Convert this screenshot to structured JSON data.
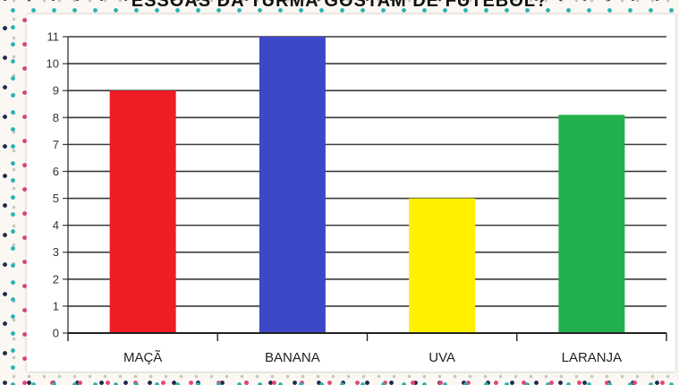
{
  "header": {
    "title": "ESSOAS DA TURMA GOSTAM DE FUTEBOL?"
  },
  "chart_data": {
    "type": "bar",
    "title": "",
    "xlabel": "",
    "ylabel": "",
    "categories": [
      "MAÇÃ",
      "BANANA",
      "UVA",
      "LARANJA"
    ],
    "values": [
      9,
      11,
      5,
      8.1
    ],
    "colors": [
      "#ee1c25",
      "#3d48c8",
      "#fff000",
      "#22b14c"
    ],
    "ylim": [
      0,
      11
    ],
    "yticks": [
      0,
      1,
      2,
      3,
      4,
      5,
      6,
      7,
      8,
      9,
      10,
      11
    ],
    "grid": true,
    "legend": "none"
  }
}
